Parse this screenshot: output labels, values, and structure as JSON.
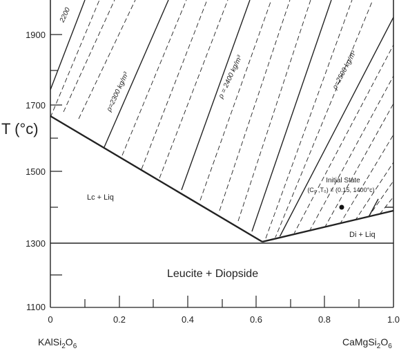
{
  "diagram": {
    "y_axis_title": "T (°c)",
    "y_ticks": [
      "1900",
      "1700",
      "1500",
      "1300",
      "1100"
    ],
    "x_ticks": [
      "0",
      "0.2",
      "0.4",
      "0.6",
      "0.8",
      "1.0"
    ],
    "left_component": {
      "base": "KAlSi",
      "sub1": "2",
      "mid": "O",
      "sub2": "6"
    },
    "right_component": {
      "base": "CaMgSi",
      "sub1": "2",
      "mid": "O",
      "sub2": "6"
    },
    "regions": {
      "lc_liq": "Lc + Liq",
      "di_liq": "Di + Liq",
      "leucite_diopside": "Leucite + Diopside"
    },
    "isopleths": {
      "rho_2200": "2200",
      "rho_2300": "ρ=2300 kg/m³",
      "rho_2400": "ρ = 2400 kg/m³",
      "rho_2500": "ρ=2500 kg/m³"
    },
    "initial_state": {
      "title": "Initial State",
      "coords": "(C₀ ,T₀) = (0.15, 1400°c)"
    }
  }
}
